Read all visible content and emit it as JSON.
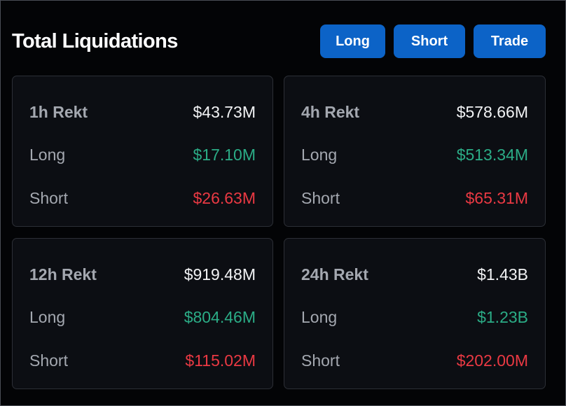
{
  "header": {
    "title": "Total Liquidations",
    "buttons": {
      "long": "Long",
      "short": "Short",
      "trade": "Trade"
    }
  },
  "colors": {
    "accent_button": "#0c63c7",
    "long": "#2bac86",
    "short": "#ea3943",
    "card_bg": "#0c0e13"
  },
  "cards": [
    {
      "period_label": "1h Rekt",
      "total": "$43.73M",
      "long_label": "Long",
      "long_value": "$17.10M",
      "short_label": "Short",
      "short_value": "$26.63M"
    },
    {
      "period_label": "4h Rekt",
      "total": "$578.66M",
      "long_label": "Long",
      "long_value": "$513.34M",
      "short_label": "Short",
      "short_value": "$65.31M"
    },
    {
      "period_label": "12h Rekt",
      "total": "$919.48M",
      "long_label": "Long",
      "long_value": "$804.46M",
      "short_label": "Short",
      "short_value": "$115.02M"
    },
    {
      "period_label": "24h Rekt",
      "total": "$1.43B",
      "long_label": "Long",
      "long_value": "$1.23B",
      "short_label": "Short",
      "short_value": "$202.00M"
    }
  ]
}
